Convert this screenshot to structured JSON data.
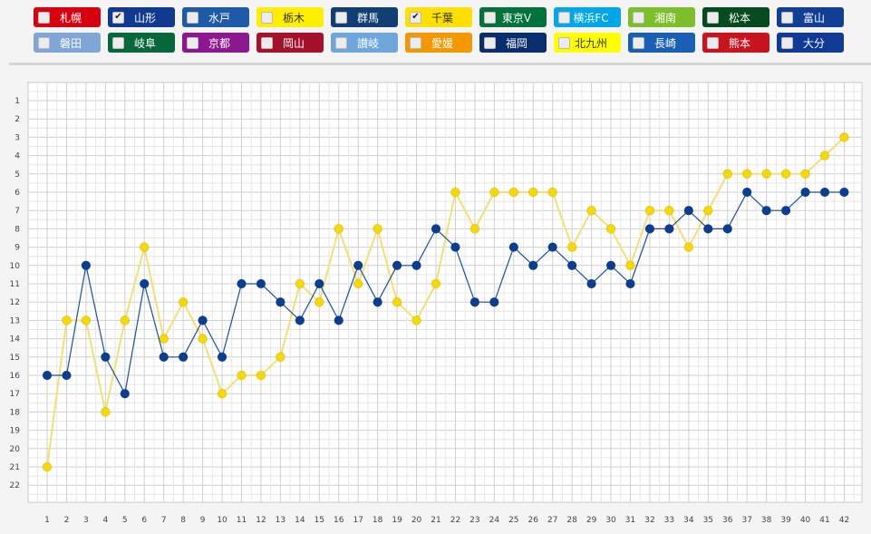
{
  "teams": [
    {
      "name": "札幌",
      "color": "#d7000f",
      "checked": false
    },
    {
      "name": "山形",
      "color": "#0f3a8f",
      "checked": true
    },
    {
      "name": "水戸",
      "color": "#1e5aa8",
      "checked": false
    },
    {
      "name": "栃木",
      "color": "#ffee00",
      "checked": false
    },
    {
      "name": "群馬",
      "color": "#123f73",
      "checked": false
    },
    {
      "name": "千葉",
      "color": "#ffe000",
      "checked": true
    },
    {
      "name": "東京V",
      "color": "#00733d",
      "checked": false
    },
    {
      "name": "横浜FC",
      "color": "#00a6e6",
      "checked": false
    },
    {
      "name": "湘南",
      "color": "#7cbf2b",
      "checked": false
    },
    {
      "name": "松本",
      "color": "#064a1f",
      "checked": false
    },
    {
      "name": "富山",
      "color": "#123f96",
      "checked": false
    },
    {
      "name": "磐田",
      "color": "#7fa6d6",
      "checked": false
    },
    {
      "name": "岐阜",
      "color": "#06673a",
      "checked": false
    },
    {
      "name": "京都",
      "color": "#8c1891",
      "checked": false
    },
    {
      "name": "岡山",
      "color": "#a5102b",
      "checked": false
    },
    {
      "name": "讃岐",
      "color": "#6fa6dc",
      "checked": false
    },
    {
      "name": "愛媛",
      "color": "#f39800",
      "checked": false
    },
    {
      "name": "福岡",
      "color": "#0a2d6e",
      "checked": false
    },
    {
      "name": "北九州",
      "color": "#ffff00",
      "checked": false
    },
    {
      "name": "長崎",
      "color": "#1a5fb4",
      "checked": false
    },
    {
      "name": "熊本",
      "color": "#c8141e",
      "checked": false
    },
    {
      "name": "大分",
      "color": "#103a96",
      "checked": false
    }
  ],
  "check_glyph": "✔",
  "chart_data": {
    "type": "line",
    "x": [
      1,
      2,
      3,
      4,
      5,
      6,
      7,
      8,
      9,
      10,
      11,
      12,
      13,
      14,
      15,
      16,
      17,
      18,
      19,
      20,
      21,
      22,
      23,
      24,
      25,
      26,
      27,
      28,
      29,
      30,
      31,
      32,
      33,
      34,
      35,
      36,
      37,
      38,
      39,
      40,
      41,
      42
    ],
    "ylim": [
      1,
      22
    ],
    "y_inverted": true,
    "grid": true,
    "series": [
      {
        "name": "千葉",
        "color": "#f5d800",
        "line_color": "#f0e07a",
        "values": [
          21,
          13,
          13,
          18,
          13,
          9,
          14,
          12,
          14,
          17,
          16,
          16,
          15,
          11,
          12,
          8,
          11,
          8,
          12,
          13,
          11,
          6,
          8,
          6,
          6,
          6,
          6,
          9,
          7,
          8,
          10,
          7,
          7,
          9,
          7,
          5,
          5,
          5,
          5,
          5,
          4,
          3
        ]
      },
      {
        "name": "山形",
        "color": "#0b3d91",
        "line_color": "#1d4f9c",
        "values": [
          16,
          16,
          10,
          15,
          17,
          11,
          15,
          15,
          13,
          15,
          11,
          11,
          12,
          13,
          11,
          13,
          10,
          12,
          10,
          10,
          8,
          9,
          12,
          12,
          9,
          10,
          9,
          10,
          11,
          10,
          11,
          8,
          8,
          7,
          8,
          8,
          6,
          7,
          7,
          6,
          6,
          6
        ]
      }
    ]
  }
}
